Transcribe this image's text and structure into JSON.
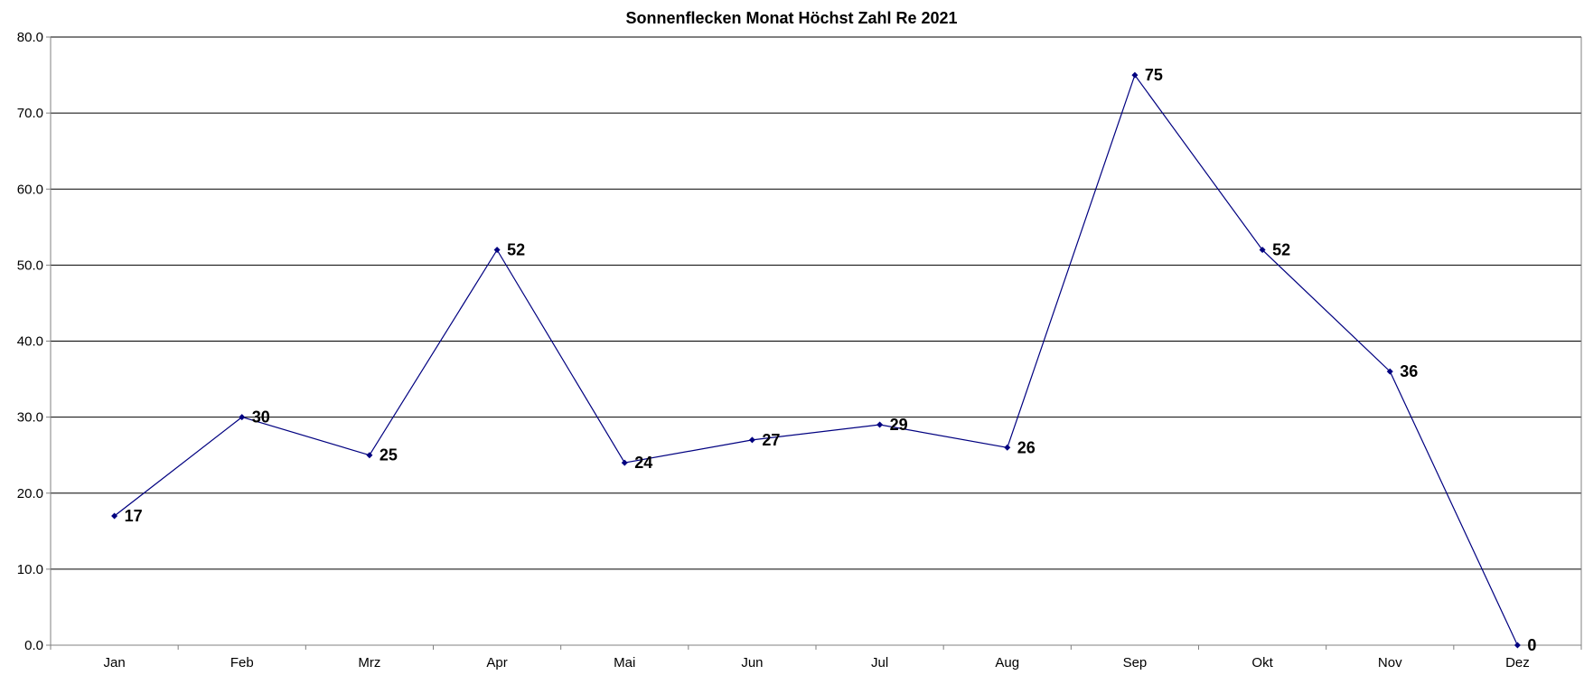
{
  "chart_data": {
    "type": "line",
    "title": "Sonnenflecken Monat Höchst Zahl Re 2021",
    "xlabel": "",
    "ylabel": "",
    "categories": [
      "Jan",
      "Feb",
      "Mrz",
      "Apr",
      "Mai",
      "Jun",
      "Jul",
      "Aug",
      "Sep",
      "Okt",
      "Nov",
      "Dez"
    ],
    "series": [
      {
        "values": [
          17,
          30,
          25,
          52,
          24,
          27,
          29,
          26,
          75,
          52,
          36,
          0
        ],
        "color": "#000080",
        "marker": "diamond",
        "data_labels": [
          "17",
          "30",
          "25",
          "52",
          "24",
          "27",
          "29",
          "26",
          "75",
          "52",
          "36",
          "0"
        ]
      }
    ],
    "ylim": [
      0,
      80
    ],
    "yticks": [
      "0.0",
      "10.0",
      "20.0",
      "30.0",
      "40.0",
      "50.0",
      "60.0",
      "70.0",
      "80.0"
    ],
    "grid": "horizontal",
    "legend": "none",
    "colors": {
      "line": "#000080",
      "gridline": "#000000",
      "axis": "#808080"
    }
  }
}
